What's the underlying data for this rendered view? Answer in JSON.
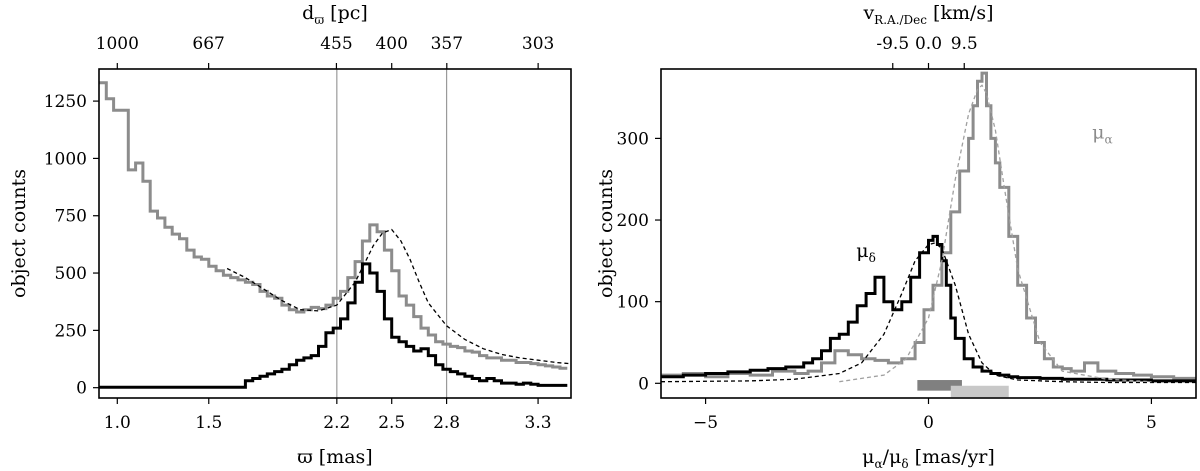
{
  "chart_data": [
    {
      "type": "step-histogram",
      "xlabel": "ϖ [mas]",
      "ylabel": "object counts",
      "top_xlabel": "d",
      "top_xlabel_sub": "ϖ",
      "top_xlabel_unit": " [pc]",
      "xlim": [
        0.9,
        3.48
      ],
      "ylim": [
        -45,
        1390
      ],
      "xticks": [
        1.0,
        1.5,
        2.2,
        2.5,
        2.8,
        3.3
      ],
      "xtick_labels": [
        "1.0",
        "1.5",
        "2.2",
        "2.5",
        "2.8",
        "3.3"
      ],
      "yticks": [
        0,
        250,
        500,
        750,
        1000,
        1250
      ],
      "ytick_labels": [
        "0",
        "250",
        "500",
        "750",
        "1000",
        "1250"
      ],
      "top_xticks": [
        1000,
        667,
        455,
        400,
        357,
        303
      ],
      "top_xtick_labels": [
        "1000",
        "667",
        "455",
        "400",
        "357",
        "303"
      ],
      "vlines": [
        2.2,
        2.8
      ],
      "series": [
        {
          "color": "#8c8c8c",
          "style": "step",
          "x": [
            0.9,
            0.94,
            0.98,
            1.02,
            1.06,
            1.1,
            1.14,
            1.18,
            1.22,
            1.26,
            1.3,
            1.34,
            1.38,
            1.42,
            1.46,
            1.5,
            1.54,
            1.58,
            1.62,
            1.66,
            1.7,
            1.74,
            1.78,
            1.82,
            1.86,
            1.9,
            1.94,
            1.98,
            2.02,
            2.06,
            2.1,
            2.14,
            2.18,
            2.22,
            2.26,
            2.3,
            2.34,
            2.38,
            2.42,
            2.46,
            2.5,
            2.54,
            2.58,
            2.62,
            2.66,
            2.7,
            2.74,
            2.78,
            2.82,
            2.86,
            2.9,
            2.94,
            2.98,
            3.02,
            3.06,
            3.1,
            3.14,
            3.18,
            3.22,
            3.26,
            3.3,
            3.34,
            3.38,
            3.42
          ],
          "values": [
            1330,
            1260,
            1210,
            1210,
            950,
            980,
            900,
            770,
            740,
            700,
            670,
            650,
            600,
            570,
            560,
            530,
            510,
            490,
            480,
            470,
            460,
            450,
            420,
            400,
            390,
            360,
            340,
            330,
            340,
            350,
            345,
            360,
            390,
            420,
            480,
            550,
            640,
            710,
            680,
            600,
            510,
            400,
            360,
            310,
            260,
            230,
            200,
            190,
            180,
            175,
            160,
            155,
            140,
            130,
            130,
            120,
            120,
            110,
            110,
            105,
            100,
            95,
            90,
            85
          ]
        },
        {
          "color": "#000000",
          "style": "step",
          "x": [
            0.9,
            1.7,
            1.74,
            1.78,
            1.82,
            1.86,
            1.9,
            1.94,
            1.98,
            2.02,
            2.06,
            2.1,
            2.14,
            2.18,
            2.22,
            2.26,
            2.3,
            2.34,
            2.38,
            2.42,
            2.46,
            2.5,
            2.54,
            2.58,
            2.62,
            2.66,
            2.7,
            2.74,
            2.78,
            2.82,
            2.86,
            2.9,
            2.94,
            2.98,
            3.02,
            3.06,
            3.1,
            3.14,
            3.18,
            3.22,
            3.26,
            3.3,
            3.34,
            3.38,
            3.42
          ],
          "values": [
            2,
            30,
            40,
            50,
            60,
            70,
            80,
            100,
            120,
            130,
            140,
            180,
            240,
            260,
            300,
            370,
            460,
            540,
            500,
            420,
            300,
            220,
            200,
            180,
            160,
            170,
            140,
            100,
            80,
            70,
            60,
            50,
            40,
            30,
            40,
            30,
            20,
            20,
            15,
            20,
            15,
            10,
            10,
            10,
            10
          ]
        },
        {
          "color": "#000000",
          "style": "dashed",
          "x": [
            1.6,
            1.7,
            1.8,
            1.9,
            2.0,
            2.1,
            2.2,
            2.3,
            2.35,
            2.4,
            2.45,
            2.5,
            2.55,
            2.6,
            2.65,
            2.7,
            2.8,
            2.9,
            3.0,
            3.1,
            3.2,
            3.3,
            3.4,
            3.47
          ],
          "values": [
            520,
            480,
            430,
            380,
            340,
            335,
            360,
            460,
            540,
            620,
            675,
            690,
            640,
            560,
            460,
            370,
            270,
            210,
            170,
            145,
            130,
            120,
            110,
            105
          ]
        }
      ]
    },
    {
      "type": "step-histogram",
      "xlabel": "μ",
      "xlabel_sub1": "α",
      "xlabel_mid": "/μ",
      "xlabel_sub2": "δ",
      "xlabel_unit": " [mas/yr]",
      "ylabel": "object counts",
      "top_xlabel": "v",
      "top_xlabel_sub": "R.A./Dec",
      "top_xlabel_unit": " [km/s]",
      "xlim": [
        -6.0,
        6.0
      ],
      "ylim": [
        -18,
        385
      ],
      "xticks": [
        -5,
        0,
        5
      ],
      "xtick_labels": [
        "−5",
        "0",
        "5"
      ],
      "yticks": [
        0,
        100,
        200,
        300
      ],
      "ytick_labels": [
        "0",
        "100",
        "200",
        "300"
      ],
      "top_xticks": [
        -9.5,
        0.0,
        9.5
      ],
      "top_xtick_labels": [
        "-9.5",
        "0.0",
        "9.5"
      ],
      "annotations": [
        {
          "text": "μ",
          "sub": "α",
          "x": 3.9,
          "y": 300,
          "color": "#8c8c8c"
        },
        {
          "text": "μ",
          "sub": "δ",
          "x": -1.4,
          "y": 155,
          "color": "#000000"
        }
      ],
      "bands": [
        {
          "x0": -0.25,
          "x1": 0.75,
          "color": "#808080",
          "row": "upper"
        },
        {
          "x0": 0.5,
          "x1": 1.8,
          "color": "#c8c8c8",
          "row": "lower"
        }
      ],
      "series": [
        {
          "color": "#8c8c8c",
          "style": "step",
          "x": [
            -6.0,
            -5.5,
            -5.0,
            -4.5,
            -4.0,
            -3.5,
            -3.0,
            -2.7,
            -2.4,
            -2.1,
            -1.8,
            -1.5,
            -1.2,
            -0.9,
            -0.6,
            -0.3,
            -0.1,
            0.1,
            0.3,
            0.5,
            0.7,
            0.9,
            1.0,
            1.1,
            1.2,
            1.3,
            1.4,
            1.5,
            1.6,
            1.8,
            2.0,
            2.2,
            2.4,
            2.6,
            2.8,
            3.0,
            3.2,
            3.5,
            3.8,
            4.2,
            4.6,
            5.0,
            5.5
          ],
          "values": [
            10,
            12,
            8,
            12,
            10,
            15,
            12,
            15,
            25,
            40,
            35,
            30,
            28,
            25,
            30,
            50,
            90,
            120,
            160,
            210,
            260,
            300,
            340,
            370,
            380,
            340,
            300,
            270,
            240,
            180,
            120,
            80,
            50,
            30,
            20,
            18,
            15,
            25,
            15,
            12,
            10,
            8,
            6
          ]
        },
        {
          "color": "#000000",
          "style": "step",
          "x": [
            -6.0,
            -5.5,
            -5.0,
            -4.5,
            -4.0,
            -3.6,
            -3.2,
            -2.8,
            -2.6,
            -2.4,
            -2.2,
            -2.0,
            -1.8,
            -1.6,
            -1.4,
            -1.2,
            -1.0,
            -0.8,
            -0.6,
            -0.4,
            -0.2,
            0.0,
            0.1,
            0.2,
            0.3,
            0.4,
            0.5,
            0.6,
            0.8,
            1.0,
            1.2,
            1.4,
            1.6,
            1.8,
            2.0,
            2.5,
            3.0,
            3.5,
            4.0,
            4.5,
            5.0,
            5.5
          ],
          "values": [
            8,
            10,
            12,
            14,
            16,
            18,
            20,
            25,
            30,
            40,
            55,
            60,
            75,
            95,
            110,
            130,
            100,
            90,
            100,
            130,
            160,
            175,
            180,
            170,
            150,
            120,
            80,
            55,
            30,
            20,
            15,
            12,
            10,
            8,
            7,
            6,
            5,
            5,
            4,
            4,
            3,
            3
          ]
        },
        {
          "color": "#000000",
          "style": "dashed",
          "x": [
            -6.0,
            -4.0,
            -3.0,
            -2.0,
            -1.5,
            -1.0,
            -0.6,
            -0.3,
            0.0,
            0.15,
            0.3,
            0.6,
            0.9,
            1.2,
            1.5,
            2.0,
            3.0,
            4.0,
            6.0
          ],
          "values": [
            2,
            3,
            5,
            12,
            25,
            60,
            110,
            150,
            170,
            172,
            165,
            120,
            60,
            25,
            10,
            4,
            2,
            1,
            1
          ]
        },
        {
          "color": "#a0a0a0",
          "style": "dashed",
          "x": [
            -2.0,
            -1.0,
            -0.5,
            0.0,
            0.3,
            0.6,
            0.9,
            1.1,
            1.2,
            1.3,
            1.5,
            1.7,
            2.0,
            2.5,
            3.0,
            4.0,
            5.0
          ],
          "values": [
            2,
            10,
            30,
            80,
            150,
            250,
            330,
            360,
            365,
            355,
            310,
            240,
            140,
            50,
            15,
            5,
            2
          ]
        }
      ]
    }
  ]
}
